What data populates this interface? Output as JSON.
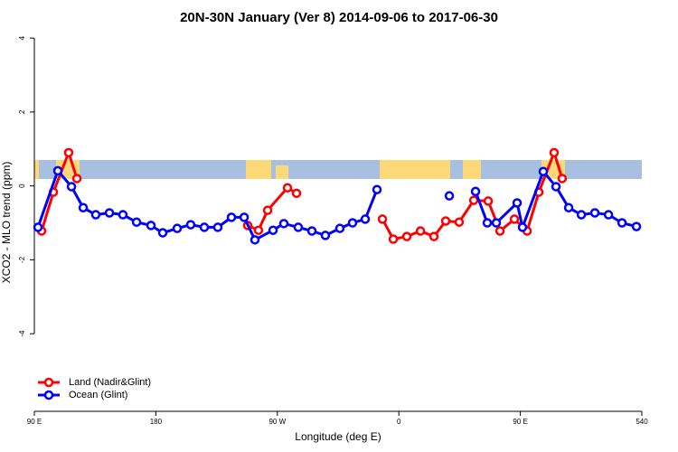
{
  "chart_data": {
    "type": "line",
    "title": "20N-30N January (Ver 8)   2014-09-06 to 2017-06-30",
    "x_label": "Longitude (deg E)",
    "y_label": "XCO2 - MLO trend (ppm)",
    "xlim": [
      90,
      540
    ],
    "xticks": [
      {
        "value": 90,
        "label": "90 E"
      },
      180,
      {
        "value": 270,
        "label": "90 W"
      },
      {
        "value": 360,
        "label": "0"
      },
      {
        "value": 450,
        "label": "90 E"
      },
      540
    ],
    "ylim": [
      -6.1,
      4.15
    ],
    "yticks": [
      -4,
      -2,
      0,
      2,
      4
    ],
    "legend": "bottom-left",
    "series": [
      {
        "name": "Land (Nadir&Glint)",
        "color": "#ff0000",
        "x": [
          95.4,
          104.1,
          115.4,
          121.5,
          null,
          248,
          256,
          262.8,
          277.5,
          284.2,
          null,
          347.8,
          355.9,
          365.9,
          376,
          386,
          394.7,
          404.7,
          415.5,
          426.2,
          434.9,
          445.6,
          455,
          463.7,
          475,
          481
        ],
        "values": [
          -1.22,
          -0.17,
          0.9,
          0.2,
          null,
          -1.07,
          -1.2,
          -0.66,
          -0.05,
          -0.2,
          null,
          -0.9,
          -1.44,
          -1.37,
          -1.22,
          -1.37,
          -0.95,
          -0.98,
          -0.39,
          -0.41,
          -1.22,
          -0.9,
          -1.22,
          -0.17,
          0.9,
          0.2
        ]
      },
      {
        "name": "Ocean (Glint)",
        "color": "#0000ff",
        "x": [
          92.7,
          107.4,
          117.5,
          126.2,
          135.5,
          145.6,
          155.6,
          165.7,
          176.4,
          185.1,
          195.8,
          205.8,
          215.9,
          225.9,
          236,
          245.4,
          253.4,
          266.8,
          274.8,
          285.5,
          295.6,
          305.6,
          316.3,
          325.7,
          335.1,
          343.8,
          null,
          397.4,
          null,
          416.8,
          425.5,
          432.2,
          447.6,
          451.6,
          467,
          476.4,
          485.8,
          495.2,
          505.2,
          515.3,
          525.3,
          536
        ],
        "values": [
          -1.12,
          0.41,
          -0.02,
          -0.59,
          -0.78,
          -0.73,
          -0.78,
          -0.98,
          -1.07,
          -1.27,
          -1.15,
          -1.05,
          -1.12,
          -1.12,
          -0.85,
          -0.85,
          -1.46,
          -1.2,
          -1.02,
          -1.12,
          -1.22,
          -1.34,
          -1.15,
          -1.0,
          -0.9,
          -0.1,
          null,
          -0.27,
          null,
          -0.15,
          -1.0,
          -1.0,
          -0.46,
          -1.12,
          0.39,
          -0.02,
          -0.59,
          -0.78,
          -0.73,
          -0.78,
          -1.0,
          -1.1
        ]
      }
    ]
  }
}
